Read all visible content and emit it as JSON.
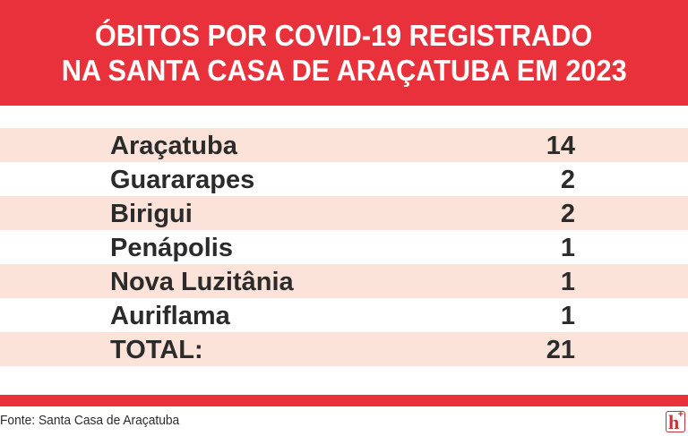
{
  "header": {
    "title_line1": "ÓBITOS POR COVID-19 REGISTRADO",
    "title_line2": "NA SANTA CASA DE ARAÇATUBA EM 2023",
    "background_color": "#e8313a"
  },
  "table": {
    "rows": [
      {
        "city": "Araçatuba",
        "deaths": "14"
      },
      {
        "city": "Guararapes",
        "deaths": "2"
      },
      {
        "city": "Birigui",
        "deaths": "2"
      },
      {
        "city": "Penápolis",
        "deaths": "1"
      },
      {
        "city": "Nova Luzitânia",
        "deaths": "1"
      },
      {
        "city": "Auriflama",
        "deaths": "1"
      }
    ],
    "total": {
      "label": "TOTAL:",
      "value": "21"
    },
    "stripe_color": "#fbe3da"
  },
  "footer": {
    "source": "Fonte: Santa Casa de Araçatuba",
    "logo": {
      "letter": "h",
      "superscript": "+",
      "icon": "hospital-plus-logo"
    }
  }
}
